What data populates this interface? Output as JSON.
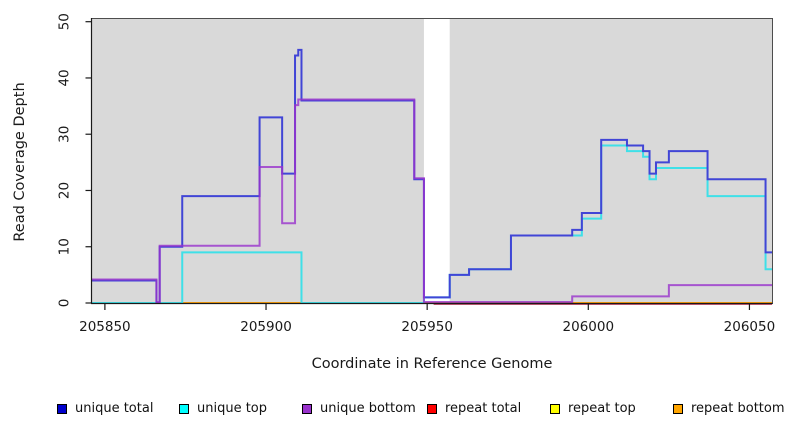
{
  "chart_data": {
    "type": "line",
    "step_style": "step-after",
    "title": "",
    "ylabel": "Read Coverage Depth",
    "xlabel": "Coordinate in Reference Genome",
    "xlim": [
      205846,
      206057
    ],
    "ylim": [
      0,
      50
    ],
    "x_ticks": [
      205850,
      205900,
      205950,
      206000,
      206050
    ],
    "y_ticks": [
      0,
      10,
      20,
      30,
      40,
      50
    ],
    "plot_bg": "#d9d9d9",
    "no_data_region": [
      205949,
      205957
    ],
    "legend_order": [
      "unique total",
      "unique top",
      "unique bottom",
      "repeat total",
      "repeat top",
      "repeat bottom"
    ],
    "series": [
      {
        "name": "repeat top",
        "legend_color": "#FFFF00",
        "line_color": "#EEEE00",
        "opacity": 1,
        "points": [
          [
            205846,
            0
          ],
          [
            206057,
            0
          ]
        ]
      },
      {
        "name": "repeat total",
        "legend_color": "#FF0000",
        "line_color": "#C85A78",
        "opacity": 1,
        "draw_from": 205952,
        "y_offset": 1,
        "points": [
          [
            205846,
            0
          ],
          [
            206057,
            0
          ]
        ]
      },
      {
        "name": "repeat bottom",
        "legend_color": "#FFA500",
        "line_color": "#FFA10A",
        "opacity": 1,
        "draw_from": 205874,
        "points": [
          [
            205846,
            0
          ],
          [
            206057,
            0
          ]
        ]
      },
      {
        "name": "unique top",
        "legend_color": "#00FFFF",
        "line_color": "#3FE0E8",
        "opacity": 1,
        "points": [
          [
            205846,
            0
          ],
          [
            205874,
            9
          ],
          [
            205911,
            0
          ],
          [
            205949,
            1
          ],
          [
            205957,
            5
          ],
          [
            205963,
            6
          ],
          [
            205976,
            12
          ],
          [
            205995,
            12
          ],
          [
            205998,
            15
          ],
          [
            206004,
            28
          ],
          [
            206012,
            27
          ],
          [
            206017,
            26
          ],
          [
            206019,
            22
          ],
          [
            206021,
            24
          ],
          [
            206025,
            24
          ],
          [
            206037,
            19
          ],
          [
            206055,
            6
          ],
          [
            206057,
            6
          ]
        ]
      },
      {
        "name": "unique total",
        "legend_color": "#0000CD",
        "line_color": "#4145D6",
        "opacity": 1,
        "points": [
          [
            205846,
            4
          ],
          [
            205866,
            0
          ],
          [
            205867,
            10
          ],
          [
            205874,
            19
          ],
          [
            205898,
            33
          ],
          [
            205905,
            23
          ],
          [
            205909,
            44
          ],
          [
            205910,
            45
          ],
          [
            205911,
            36
          ],
          [
            205946,
            22
          ],
          [
            205949,
            1
          ],
          [
            205957,
            5
          ],
          [
            205963,
            6
          ],
          [
            205976,
            12
          ],
          [
            205995,
            13
          ],
          [
            205998,
            16
          ],
          [
            206004,
            29
          ],
          [
            206012,
            28
          ],
          [
            206017,
            27
          ],
          [
            206019,
            23
          ],
          [
            206021,
            25
          ],
          [
            206025,
            27
          ],
          [
            206037,
            22
          ],
          [
            206055,
            9
          ],
          [
            206057,
            9
          ]
        ]
      },
      {
        "name": "unique bottom",
        "legend_color": "#9932CC",
        "line_color": "#9932CC",
        "opacity": 0.8,
        "y_offset": -1,
        "points": [
          [
            205846,
            4
          ],
          [
            205866,
            0
          ],
          [
            205867,
            10
          ],
          [
            205898,
            24
          ],
          [
            205905,
            14
          ],
          [
            205909,
            35
          ],
          [
            205910,
            36
          ],
          [
            205946,
            22
          ],
          [
            205949,
            0
          ],
          [
            205995,
            1
          ],
          [
            206025,
            3
          ],
          [
            206057,
            3
          ]
        ]
      }
    ],
    "render_hints": {
      "zero_line_blend_color": "#8FCB8F",
      "zero_line_blend_segments": [
        [
          205846,
          205874
        ],
        [
          205911,
          205949
        ]
      ]
    }
  }
}
